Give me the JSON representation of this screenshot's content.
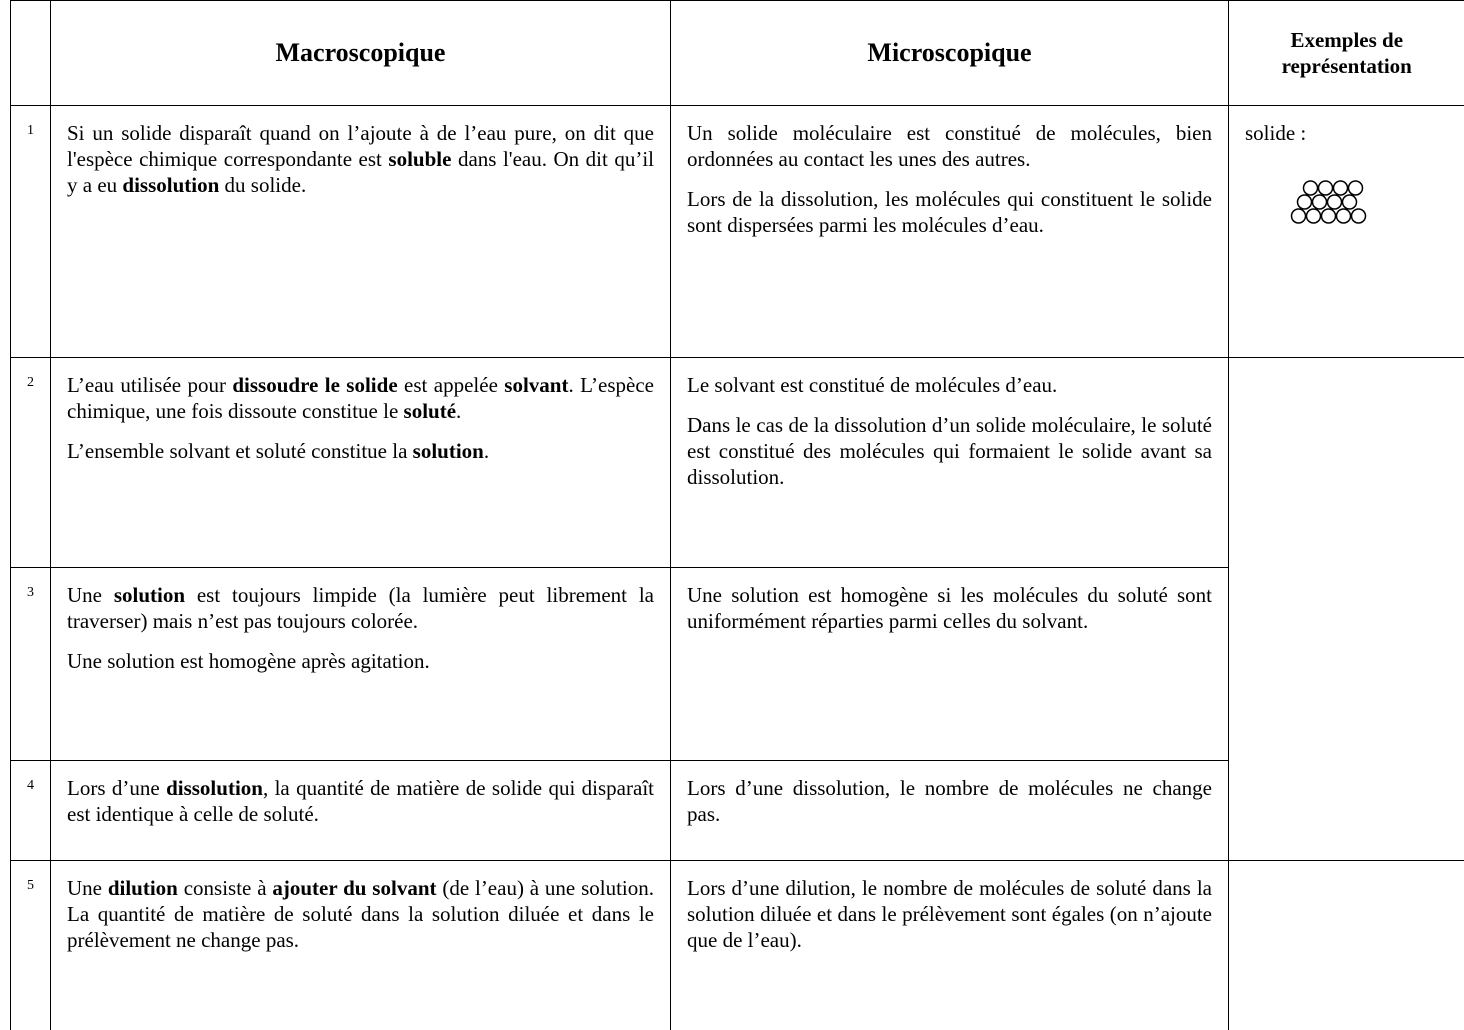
{
  "header": {
    "macro": "Macroscopique",
    "micro": "Microscopique",
    "examples": "Exemples de représentation"
  },
  "rows": [
    {
      "number": 1,
      "macro": [
        [
          "Si un solide disparaît quand on l’ajoute à de l’eau pure, on dit que l'espèce chimique correspondante est ",
          {
            "bold": "soluble"
          },
          " dans l'eau. On dit qu’il y a eu ",
          {
            "bold": "dissolution"
          },
          " du solide."
        ]
      ],
      "micro": [
        [
          "Un solide moléculaire est constitué de molécules, bien ordonnées au contact les unes des autres."
        ],
        [
          "Lors de la dissolution, les molécules qui constituent le solide sont dispersées parmi les molécules d’eau."
        ]
      ],
      "example": "solide :"
    },
    {
      "number": 2,
      "macro": [
        [
          "L’eau utilisée pour ",
          {
            "bold": "dissoudre le solide"
          },
          " est appelée ",
          {
            "bold": "solvant"
          },
          ". L’espèce chimique, une fois dissoute constitue le ",
          {
            "bold": "soluté"
          },
          "."
        ],
        [
          "L’ensemble solvant et soluté constitue la ",
          {
            "bold": "solution"
          },
          "."
        ]
      ],
      "micro": [
        [
          "Le solvant est constitué de molécules d’eau."
        ],
        [
          "Dans le cas de la dissolution d’un solide moléculaire, le soluté est constitué des molécules qui formaient le solide avant sa dissolution."
        ]
      ]
    },
    {
      "number": 3,
      "macro": [
        [
          "Une ",
          {
            "bold": "solution"
          },
          " est toujours limpide (la lumière peut librement la traverser) mais n’est pas toujours colorée."
        ],
        [
          "Une solution est homogène après agitation."
        ]
      ],
      "micro": [
        [
          "Une solution est homogène si les molécules du soluté sont uniformément réparties parmi celles du solvant."
        ]
      ]
    },
    {
      "number": 4,
      "macro": [
        [
          "Lors d’une ",
          {
            "bold": "dissolution"
          },
          ", la quantité de matière de solide qui disparaît est identique à celle de soluté."
        ]
      ],
      "micro": [
        [
          "Lors d’une dissolution, le nombre de molécules ne change pas."
        ]
      ]
    },
    {
      "number": 5,
      "macro": [
        [
          "Une ",
          {
            "bold": "dilution"
          },
          " consiste à ",
          {
            "bold": "ajouter du solvant"
          },
          " (de l’eau) à une solution. La quantité de matière de soluté dans la solution diluée et dans le prélèvement ne change pas."
        ]
      ],
      "micro": [
        [
          "Lors d’une dilution, le nombre de molécules de soluté dans la solution diluée et dans le prélèvement sont égales (on n’ajoute que de l’eau)."
        ]
      ]
    }
  ]
}
